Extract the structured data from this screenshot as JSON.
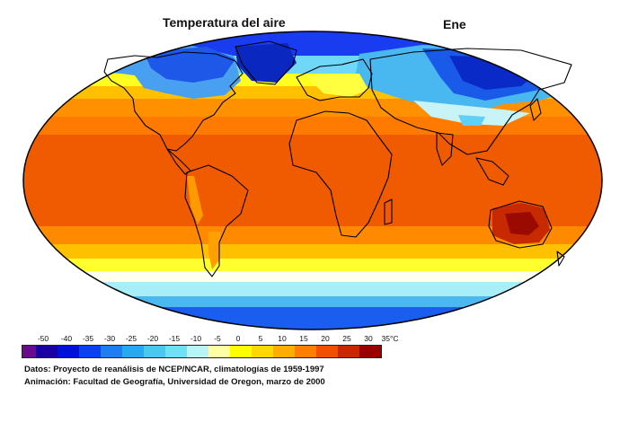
{
  "header": {
    "title": "Temperatura del aire",
    "month": "Ene"
  },
  "legend": {
    "ticks": [
      "-50",
      "-40",
      "-35",
      "-30",
      "-25",
      "-20",
      "-15",
      "-10",
      "-5",
      "0",
      "5",
      "10",
      "15",
      "20",
      "25",
      "30",
      "35°C"
    ],
    "colors": [
      "#6a0a8c",
      "#1a00a0",
      "#0010d8",
      "#0a40f0",
      "#1f7df0",
      "#28a8f0",
      "#4cc8f0",
      "#6fe0f8",
      "#b8f4f8",
      "#ffffa8",
      "#ffff00",
      "#ffd800",
      "#ffae00",
      "#ff8000",
      "#f05000",
      "#c82800",
      "#980000"
    ]
  },
  "footer": {
    "line1": "Datos: Proyecto de reanálisis de NCEP/NCAR, climatologías de 1959-1997",
    "line2": "Animación: Facultad de Geografía, Universidad de Oregon, marzo de 2000"
  }
}
